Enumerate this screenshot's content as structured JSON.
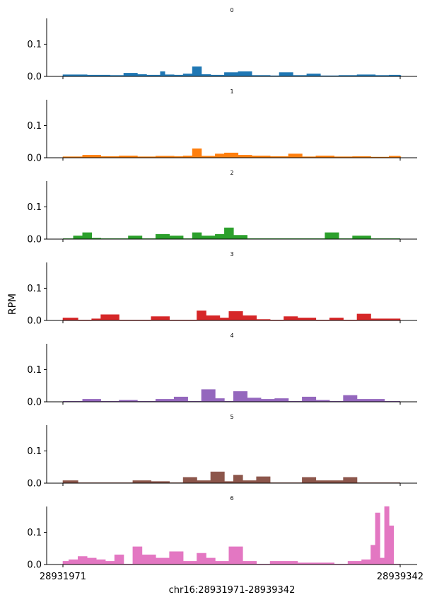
{
  "chart_data": {
    "type": "area",
    "ylabel": "RPM",
    "xlabel": "chr16:28931971-28939342",
    "x_ticks": [
      "28931971",
      "28939342"
    ],
    "xlim": [
      28931971,
      28939342
    ],
    "ylim": [
      0,
      0.18
    ],
    "y_ticks": [
      "0.0",
      "0.1"
    ],
    "grid": false,
    "panels": [
      {
        "title": "0",
        "color": "#1f77b4",
        "x": [
          28931971,
          28932500,
          28933000,
          28933300,
          28933600,
          28933800,
          28934100,
          28934200,
          28934400,
          28934600,
          28934800,
          28935000,
          28935200,
          28935500,
          28935800,
          28936100,
          28936500,
          28936700,
          28937000,
          28937300,
          28937600,
          28938000,
          28938400,
          28938800,
          28939100,
          28939342
        ],
        "values": [
          0.005,
          0.004,
          0.003,
          0.01,
          0.006,
          0.004,
          0.015,
          0.005,
          0.004,
          0.008,
          0.03,
          0.006,
          0.004,
          0.012,
          0.015,
          0.003,
          0.002,
          0.012,
          0.003,
          0.008,
          0.002,
          0.003,
          0.005,
          0.003,
          0.004,
          0.003
        ]
      },
      {
        "title": "1",
        "color": "#ff7f0e",
        "x": [
          28931971,
          28932400,
          28932800,
          28933200,
          28933600,
          28934000,
          28934400,
          28934600,
          28934800,
          28935000,
          28935300,
          28935500,
          28935800,
          28936100,
          28936500,
          28936900,
          28937200,
          28937500,
          28937900,
          28938300,
          28938700,
          28939100,
          28939342
        ],
        "values": [
          0.003,
          0.008,
          0.004,
          0.006,
          0.003,
          0.005,
          0.004,
          0.006,
          0.028,
          0.005,
          0.012,
          0.015,
          0.008,
          0.006,
          0.004,
          0.012,
          0.003,
          0.006,
          0.003,
          0.004,
          0.002,
          0.005,
          0.003
        ]
      },
      {
        "title": "2",
        "color": "#2ca02c",
        "x": [
          28931971,
          28932200,
          28932400,
          28932600,
          28932800,
          28933100,
          28933400,
          28933700,
          28934000,
          28934300,
          28934600,
          28934800,
          28935000,
          28935300,
          28935500,
          28935700,
          28936000,
          28936300,
          28936700,
          28937000,
          28937300,
          28937700,
          28938000,
          28938300,
          28938700,
          28939000,
          28939342
        ],
        "values": [
          0.0,
          0.01,
          0.02,
          0.003,
          0.0,
          0.0,
          0.01,
          0.0,
          0.015,
          0.01,
          0.0,
          0.02,
          0.01,
          0.015,
          0.035,
          0.012,
          0.0,
          0.0,
          0.0,
          0.0,
          0.0,
          0.02,
          0.0,
          0.01,
          0.0,
          0.0,
          0.0
        ]
      },
      {
        "title": "3",
        "color": "#d62728",
        "x": [
          28931971,
          28932300,
          28932600,
          28932800,
          28933200,
          28933500,
          28933900,
          28934300,
          28934700,
          28934900,
          28935100,
          28935400,
          28935600,
          28935900,
          28936200,
          28936500,
          28936800,
          28937100,
          28937500,
          28937800,
          28938100,
          28938400,
          28938700,
          28939000,
          28939342
        ],
        "values": [
          0.008,
          0.0,
          0.005,
          0.018,
          0.0,
          0.0,
          0.012,
          0.0,
          0.0,
          0.03,
          0.015,
          0.008,
          0.028,
          0.015,
          0.003,
          0.0,
          0.012,
          0.008,
          0.0,
          0.008,
          0.0,
          0.02,
          0.005,
          0.005,
          0.0
        ]
      },
      {
        "title": "4",
        "color": "#9467bd",
        "x": [
          28931971,
          28932400,
          28932800,
          28933200,
          28933600,
          28934000,
          28934400,
          28934700,
          28935000,
          28935300,
          28935500,
          28935700,
          28936000,
          28936300,
          28936600,
          28936900,
          28937200,
          28937500,
          28937800,
          28938100,
          28938400,
          28938700,
          28939000,
          28939342
        ],
        "values": [
          0.0,
          0.008,
          0.0,
          0.005,
          0.0,
          0.008,
          0.015,
          0.0,
          0.038,
          0.01,
          0.0,
          0.032,
          0.012,
          0.008,
          0.01,
          0.0,
          0.015,
          0.005,
          0.0,
          0.02,
          0.008,
          0.008,
          0.0,
          0.0
        ]
      },
      {
        "title": "5",
        "color": "#8c564b",
        "x": [
          28931971,
          28932300,
          28932700,
          28933100,
          28933500,
          28933900,
          28934300,
          28934600,
          28934900,
          28935200,
          28935500,
          28935700,
          28935900,
          28936200,
          28936500,
          28936800,
          28937200,
          28937500,
          28937800,
          28938100,
          28938400,
          28938800,
          28939342
        ],
        "values": [
          0.008,
          0.0,
          0.0,
          0.0,
          0.008,
          0.005,
          0.0,
          0.018,
          0.008,
          0.035,
          0.005,
          0.025,
          0.008,
          0.02,
          0.0,
          0.0,
          0.018,
          0.008,
          0.008,
          0.018,
          0.0,
          0.0,
          0.0
        ]
      },
      {
        "title": "6",
        "color": "#e377c2",
        "x": [
          28931971,
          28932100,
          28932300,
          28932500,
          28932700,
          28932900,
          28933100,
          28933300,
          28933500,
          28933700,
          28934000,
          28934300,
          28934600,
          28934900,
          28935100,
          28935300,
          28935600,
          28935900,
          28936200,
          28936500,
          28936800,
          28937100,
          28937500,
          28937900,
          28938200,
          28938500,
          28938700,
          28938800,
          28938900,
          28939000,
          28939100,
          28939200,
          28939342
        ],
        "values": [
          0.01,
          0.015,
          0.025,
          0.02,
          0.015,
          0.01,
          0.03,
          0.0,
          0.055,
          0.03,
          0.02,
          0.04,
          0.01,
          0.035,
          0.02,
          0.01,
          0.055,
          0.01,
          0.0,
          0.01,
          0.01,
          0.005,
          0.005,
          0.0,
          0.01,
          0.015,
          0.06,
          0.16,
          0.02,
          0.18,
          0.12,
          0.0,
          0.0
        ]
      }
    ]
  }
}
